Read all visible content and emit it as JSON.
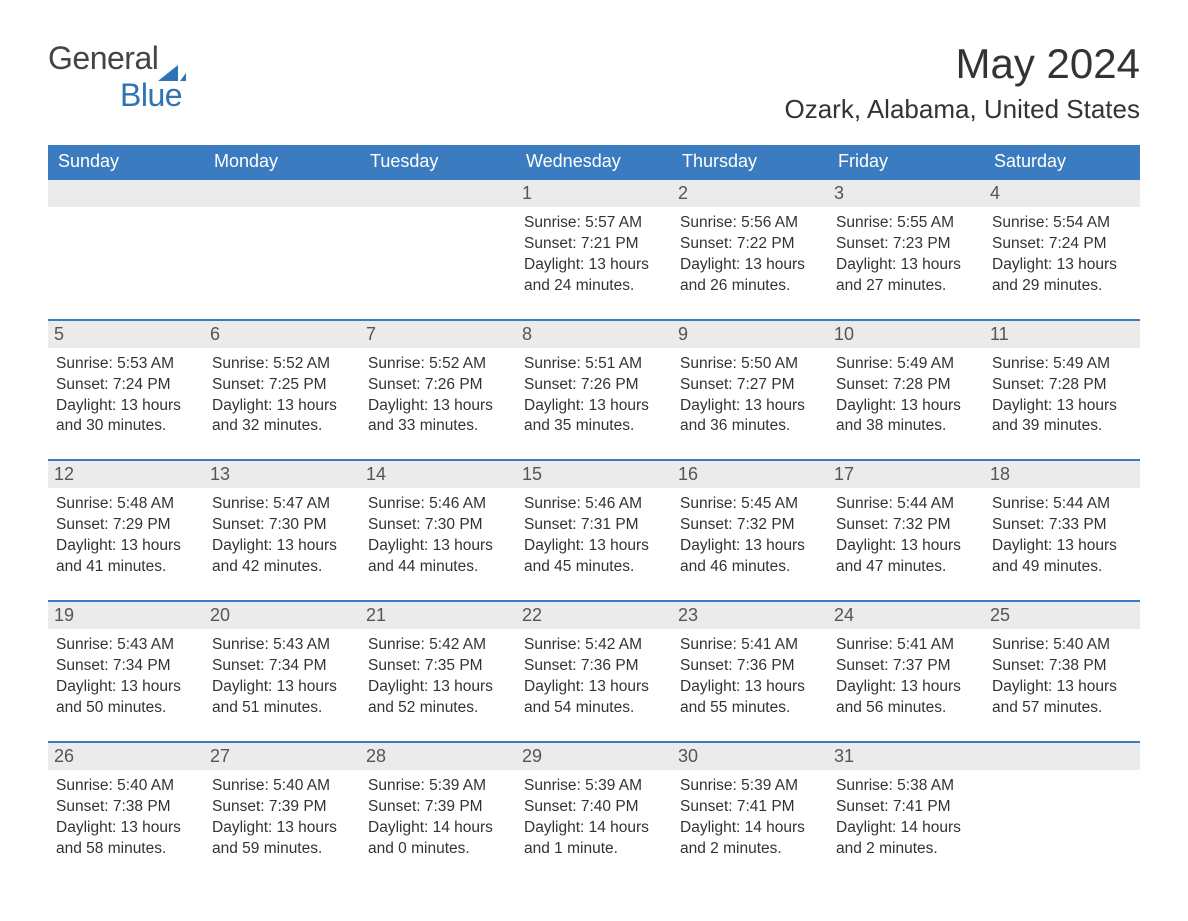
{
  "brand": {
    "word1": "General",
    "word2": "Blue"
  },
  "title": "May 2024",
  "location": "Ozark, Alabama, United States",
  "colors": {
    "header_bg": "#3b7bbf",
    "header_text": "#ffffff",
    "daynum_bg": "#ebebeb",
    "brand_blue": "#2f73b5",
    "text": "#333333",
    "page_bg": "#ffffff"
  },
  "day_headers": [
    "Sunday",
    "Monday",
    "Tuesday",
    "Wednesday",
    "Thursday",
    "Friday",
    "Saturday"
  ],
  "weeks": [
    [
      {
        "empty": true
      },
      {
        "empty": true
      },
      {
        "empty": true
      },
      {
        "n": "1",
        "sr": "Sunrise: 5:57 AM",
        "ss": "Sunset: 7:21 PM",
        "dl": "Daylight: 13 hours and 24 minutes."
      },
      {
        "n": "2",
        "sr": "Sunrise: 5:56 AM",
        "ss": "Sunset: 7:22 PM",
        "dl": "Daylight: 13 hours and 26 minutes."
      },
      {
        "n": "3",
        "sr": "Sunrise: 5:55 AM",
        "ss": "Sunset: 7:23 PM",
        "dl": "Daylight: 13 hours and 27 minutes."
      },
      {
        "n": "4",
        "sr": "Sunrise: 5:54 AM",
        "ss": "Sunset: 7:24 PM",
        "dl": "Daylight: 13 hours and 29 minutes."
      }
    ],
    [
      {
        "n": "5",
        "sr": "Sunrise: 5:53 AM",
        "ss": "Sunset: 7:24 PM",
        "dl": "Daylight: 13 hours and 30 minutes."
      },
      {
        "n": "6",
        "sr": "Sunrise: 5:52 AM",
        "ss": "Sunset: 7:25 PM",
        "dl": "Daylight: 13 hours and 32 minutes."
      },
      {
        "n": "7",
        "sr": "Sunrise: 5:52 AM",
        "ss": "Sunset: 7:26 PM",
        "dl": "Daylight: 13 hours and 33 minutes."
      },
      {
        "n": "8",
        "sr": "Sunrise: 5:51 AM",
        "ss": "Sunset: 7:26 PM",
        "dl": "Daylight: 13 hours and 35 minutes."
      },
      {
        "n": "9",
        "sr": "Sunrise: 5:50 AM",
        "ss": "Sunset: 7:27 PM",
        "dl": "Daylight: 13 hours and 36 minutes."
      },
      {
        "n": "10",
        "sr": "Sunrise: 5:49 AM",
        "ss": "Sunset: 7:28 PM",
        "dl": "Daylight: 13 hours and 38 minutes."
      },
      {
        "n": "11",
        "sr": "Sunrise: 5:49 AM",
        "ss": "Sunset: 7:28 PM",
        "dl": "Daylight: 13 hours and 39 minutes."
      }
    ],
    [
      {
        "n": "12",
        "sr": "Sunrise: 5:48 AM",
        "ss": "Sunset: 7:29 PM",
        "dl": "Daylight: 13 hours and 41 minutes."
      },
      {
        "n": "13",
        "sr": "Sunrise: 5:47 AM",
        "ss": "Sunset: 7:30 PM",
        "dl": "Daylight: 13 hours and 42 minutes."
      },
      {
        "n": "14",
        "sr": "Sunrise: 5:46 AM",
        "ss": "Sunset: 7:30 PM",
        "dl": "Daylight: 13 hours and 44 minutes."
      },
      {
        "n": "15",
        "sr": "Sunrise: 5:46 AM",
        "ss": "Sunset: 7:31 PM",
        "dl": "Daylight: 13 hours and 45 minutes."
      },
      {
        "n": "16",
        "sr": "Sunrise: 5:45 AM",
        "ss": "Sunset: 7:32 PM",
        "dl": "Daylight: 13 hours and 46 minutes."
      },
      {
        "n": "17",
        "sr": "Sunrise: 5:44 AM",
        "ss": "Sunset: 7:32 PM",
        "dl": "Daylight: 13 hours and 47 minutes."
      },
      {
        "n": "18",
        "sr": "Sunrise: 5:44 AM",
        "ss": "Sunset: 7:33 PM",
        "dl": "Daylight: 13 hours and 49 minutes."
      }
    ],
    [
      {
        "n": "19",
        "sr": "Sunrise: 5:43 AM",
        "ss": "Sunset: 7:34 PM",
        "dl": "Daylight: 13 hours and 50 minutes."
      },
      {
        "n": "20",
        "sr": "Sunrise: 5:43 AM",
        "ss": "Sunset: 7:34 PM",
        "dl": "Daylight: 13 hours and 51 minutes."
      },
      {
        "n": "21",
        "sr": "Sunrise: 5:42 AM",
        "ss": "Sunset: 7:35 PM",
        "dl": "Daylight: 13 hours and 52 minutes."
      },
      {
        "n": "22",
        "sr": "Sunrise: 5:42 AM",
        "ss": "Sunset: 7:36 PM",
        "dl": "Daylight: 13 hours and 54 minutes."
      },
      {
        "n": "23",
        "sr": "Sunrise: 5:41 AM",
        "ss": "Sunset: 7:36 PM",
        "dl": "Daylight: 13 hours and 55 minutes."
      },
      {
        "n": "24",
        "sr": "Sunrise: 5:41 AM",
        "ss": "Sunset: 7:37 PM",
        "dl": "Daylight: 13 hours and 56 minutes."
      },
      {
        "n": "25",
        "sr": "Sunrise: 5:40 AM",
        "ss": "Sunset: 7:38 PM",
        "dl": "Daylight: 13 hours and 57 minutes."
      }
    ],
    [
      {
        "n": "26",
        "sr": "Sunrise: 5:40 AM",
        "ss": "Sunset: 7:38 PM",
        "dl": "Daylight: 13 hours and 58 minutes."
      },
      {
        "n": "27",
        "sr": "Sunrise: 5:40 AM",
        "ss": "Sunset: 7:39 PM",
        "dl": "Daylight: 13 hours and 59 minutes."
      },
      {
        "n": "28",
        "sr": "Sunrise: 5:39 AM",
        "ss": "Sunset: 7:39 PM",
        "dl": "Daylight: 14 hours and 0 minutes."
      },
      {
        "n": "29",
        "sr": "Sunrise: 5:39 AM",
        "ss": "Sunset: 7:40 PM",
        "dl": "Daylight: 14 hours and 1 minute."
      },
      {
        "n": "30",
        "sr": "Sunrise: 5:39 AM",
        "ss": "Sunset: 7:41 PM",
        "dl": "Daylight: 14 hours and 2 minutes."
      },
      {
        "n": "31",
        "sr": "Sunrise: 5:38 AM",
        "ss": "Sunset: 7:41 PM",
        "dl": "Daylight: 14 hours and 2 minutes."
      },
      {
        "empty": true
      }
    ]
  ]
}
